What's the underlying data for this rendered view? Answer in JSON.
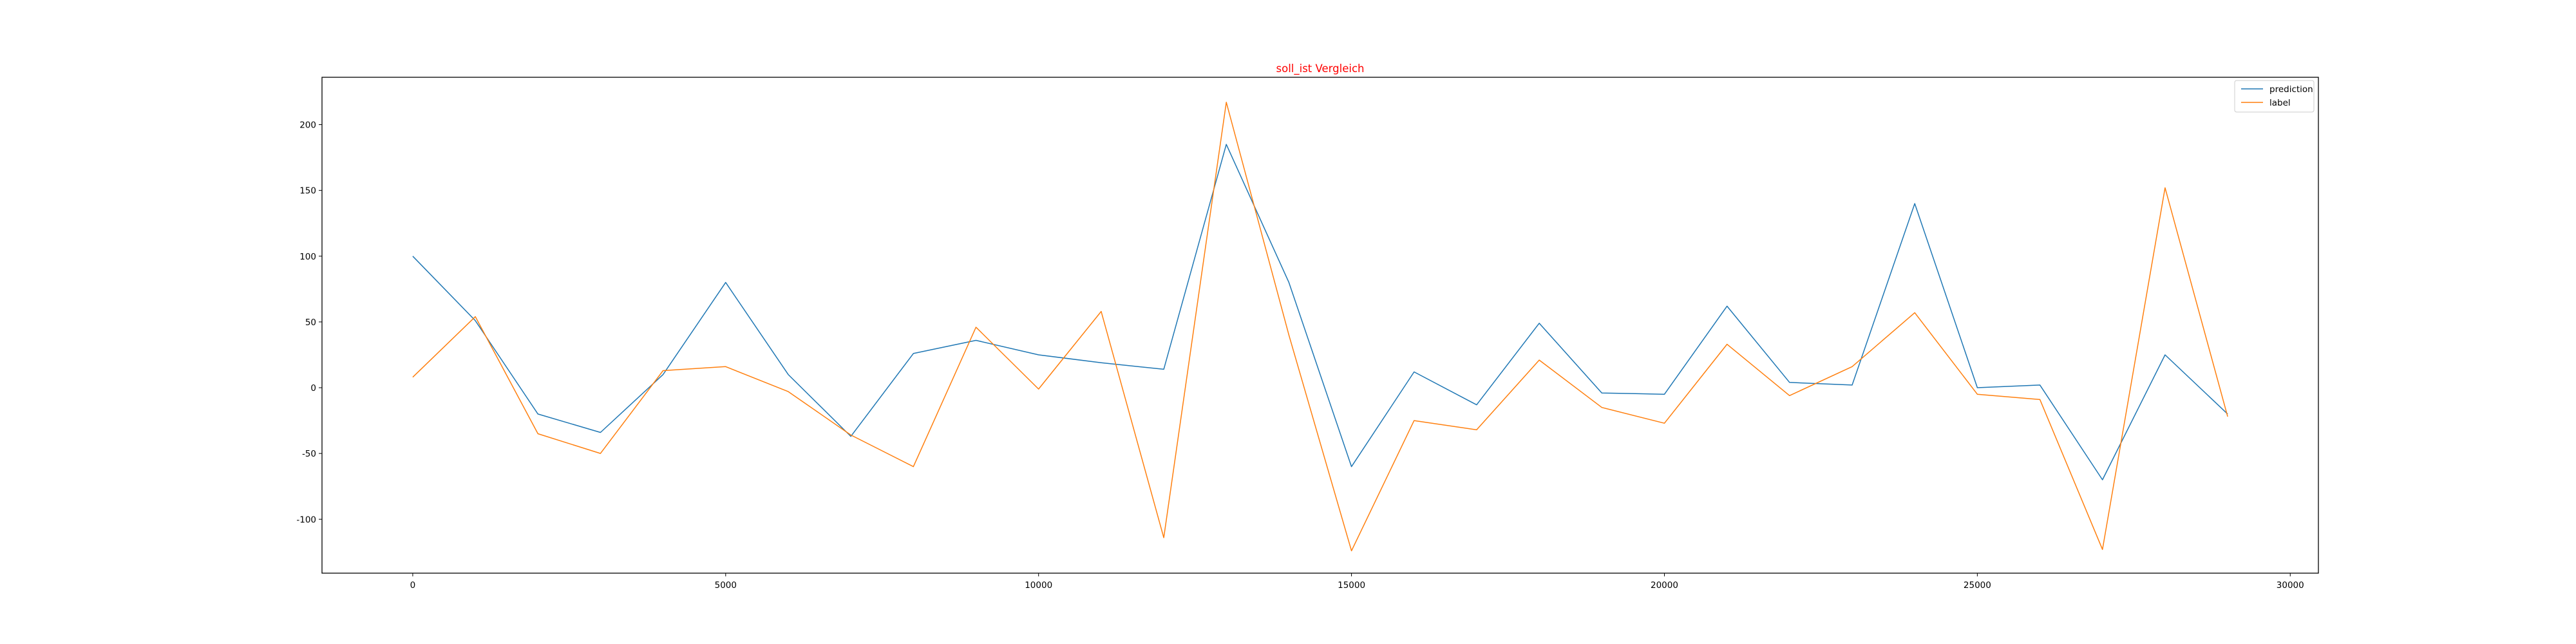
{
  "chart_data": {
    "type": "line",
    "title": "soll_ist Vergleich",
    "title_color": "#ff0000",
    "xlabel": "",
    "ylabel": "",
    "xlim": [
      -1450,
      30450
    ],
    "ylim": [
      -141,
      236
    ],
    "x_ticks": [
      0,
      5000,
      10000,
      15000,
      20000,
      25000,
      30000
    ],
    "y_ticks": [
      -100,
      -50,
      0,
      50,
      100,
      150,
      200
    ],
    "grid": false,
    "legend_position": "top-right",
    "x": [
      0,
      1000,
      2000,
      3000,
      4000,
      5000,
      6000,
      7000,
      8000,
      9000,
      10000,
      11000,
      12000,
      13000,
      14000,
      15000,
      16000,
      17000,
      18000,
      19000,
      20000,
      21000,
      22000,
      23000,
      24000,
      25000,
      26000,
      27000,
      28000,
      29000
    ],
    "series": [
      {
        "name": "prediction",
        "color": "#1f77b4",
        "values": [
          100,
          51,
          -20,
          -34,
          10,
          80,
          10,
          -37,
          26,
          36,
          25,
          19,
          14,
          185,
          80,
          -60,
          12,
          -13,
          49,
          -4,
          -5,
          62,
          4,
          2,
          140,
          0,
          2,
          -70,
          25,
          -20
        ]
      },
      {
        "name": "label",
        "color": "#ff7f0e",
        "values": [
          8,
          54,
          -35,
          -50,
          13,
          16,
          -3,
          -36,
          -60,
          46,
          -1,
          58,
          -114,
          217,
          40,
          -124,
          -25,
          -32,
          21,
          -15,
          -27,
          33,
          -6,
          16,
          57,
          -5,
          -9,
          -123,
          152,
          -22
        ]
      }
    ]
  }
}
